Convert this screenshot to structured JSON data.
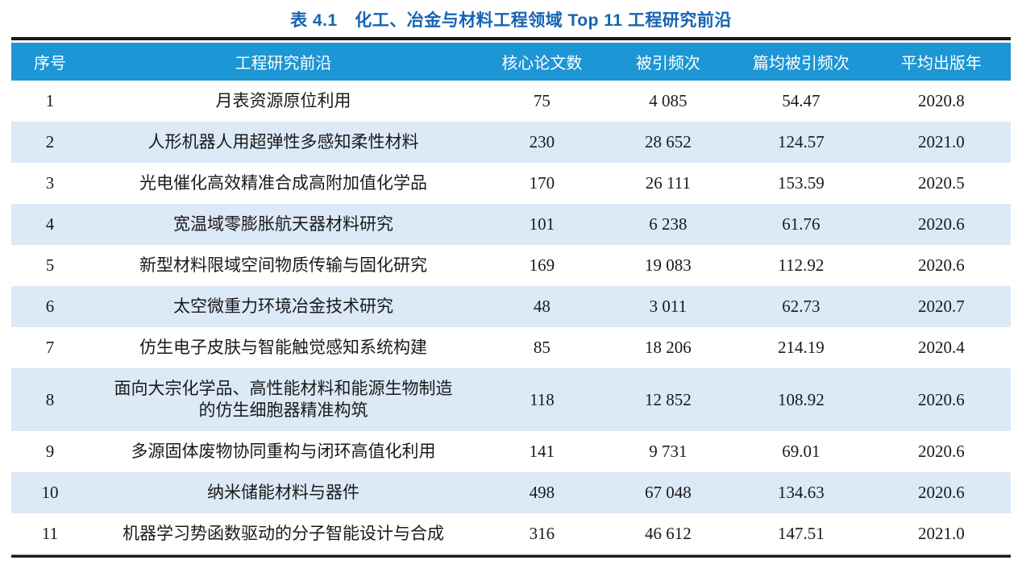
{
  "title": "表 4.1　化工、冶金与材料工程领域 Top 11 工程研究前沿",
  "colors": {
    "header_bg": "#1c96d4",
    "alt_row_bg": "#dce9f7",
    "title_color": "#1663b2"
  },
  "table": {
    "headers": [
      "序号",
      "工程研究前沿",
      "核心论文数",
      "被引频次",
      "篇均被引频次",
      "平均出版年"
    ],
    "column_keys": [
      "no",
      "front",
      "papers",
      "citations",
      "cpp",
      "year"
    ],
    "rows": [
      {
        "no": "1",
        "front": "月表资源原位利用",
        "papers": "75",
        "citations": "4 085",
        "cpp": "54.47",
        "year": "2020.8"
      },
      {
        "no": "2",
        "front": "人形机器人用超弹性多感知柔性材料",
        "papers": "230",
        "citations": "28 652",
        "cpp": "124.57",
        "year": "2021.0"
      },
      {
        "no": "3",
        "front": "光电催化高效精准合成高附加值化学品",
        "papers": "170",
        "citations": "26 111",
        "cpp": "153.59",
        "year": "2020.5"
      },
      {
        "no": "4",
        "front": "宽温域零膨胀航天器材料研究",
        "papers": "101",
        "citations": "6 238",
        "cpp": "61.76",
        "year": "2020.6"
      },
      {
        "no": "5",
        "front": "新型材料限域空间物质传输与固化研究",
        "papers": "169",
        "citations": "19 083",
        "cpp": "112.92",
        "year": "2020.6"
      },
      {
        "no": "6",
        "front": "太空微重力环境冶金技术研究",
        "papers": "48",
        "citations": "3 011",
        "cpp": "62.73",
        "year": "2020.7"
      },
      {
        "no": "7",
        "front": "仿生电子皮肤与智能触觉感知系统构建",
        "papers": "85",
        "citations": "18 206",
        "cpp": "214.19",
        "year": "2020.4"
      },
      {
        "no": "8",
        "front": "面向大宗化学品、高性能材料和能源生物制造的仿生细胞器精准构筑",
        "papers": "118",
        "citations": "12 852",
        "cpp": "108.92",
        "year": "2020.6"
      },
      {
        "no": "9",
        "front": "多源固体废物协同重构与闭环高值化利用",
        "papers": "141",
        "citations": "9 731",
        "cpp": "69.01",
        "year": "2020.6"
      },
      {
        "no": "10",
        "front": "纳米储能材料与器件",
        "papers": "498",
        "citations": "67 048",
        "cpp": "134.63",
        "year": "2020.6"
      },
      {
        "no": "11",
        "front": "机器学习势函数驱动的分子智能设计与合成",
        "papers": "316",
        "citations": "46 612",
        "cpp": "147.51",
        "year": "2021.0"
      }
    ]
  }
}
